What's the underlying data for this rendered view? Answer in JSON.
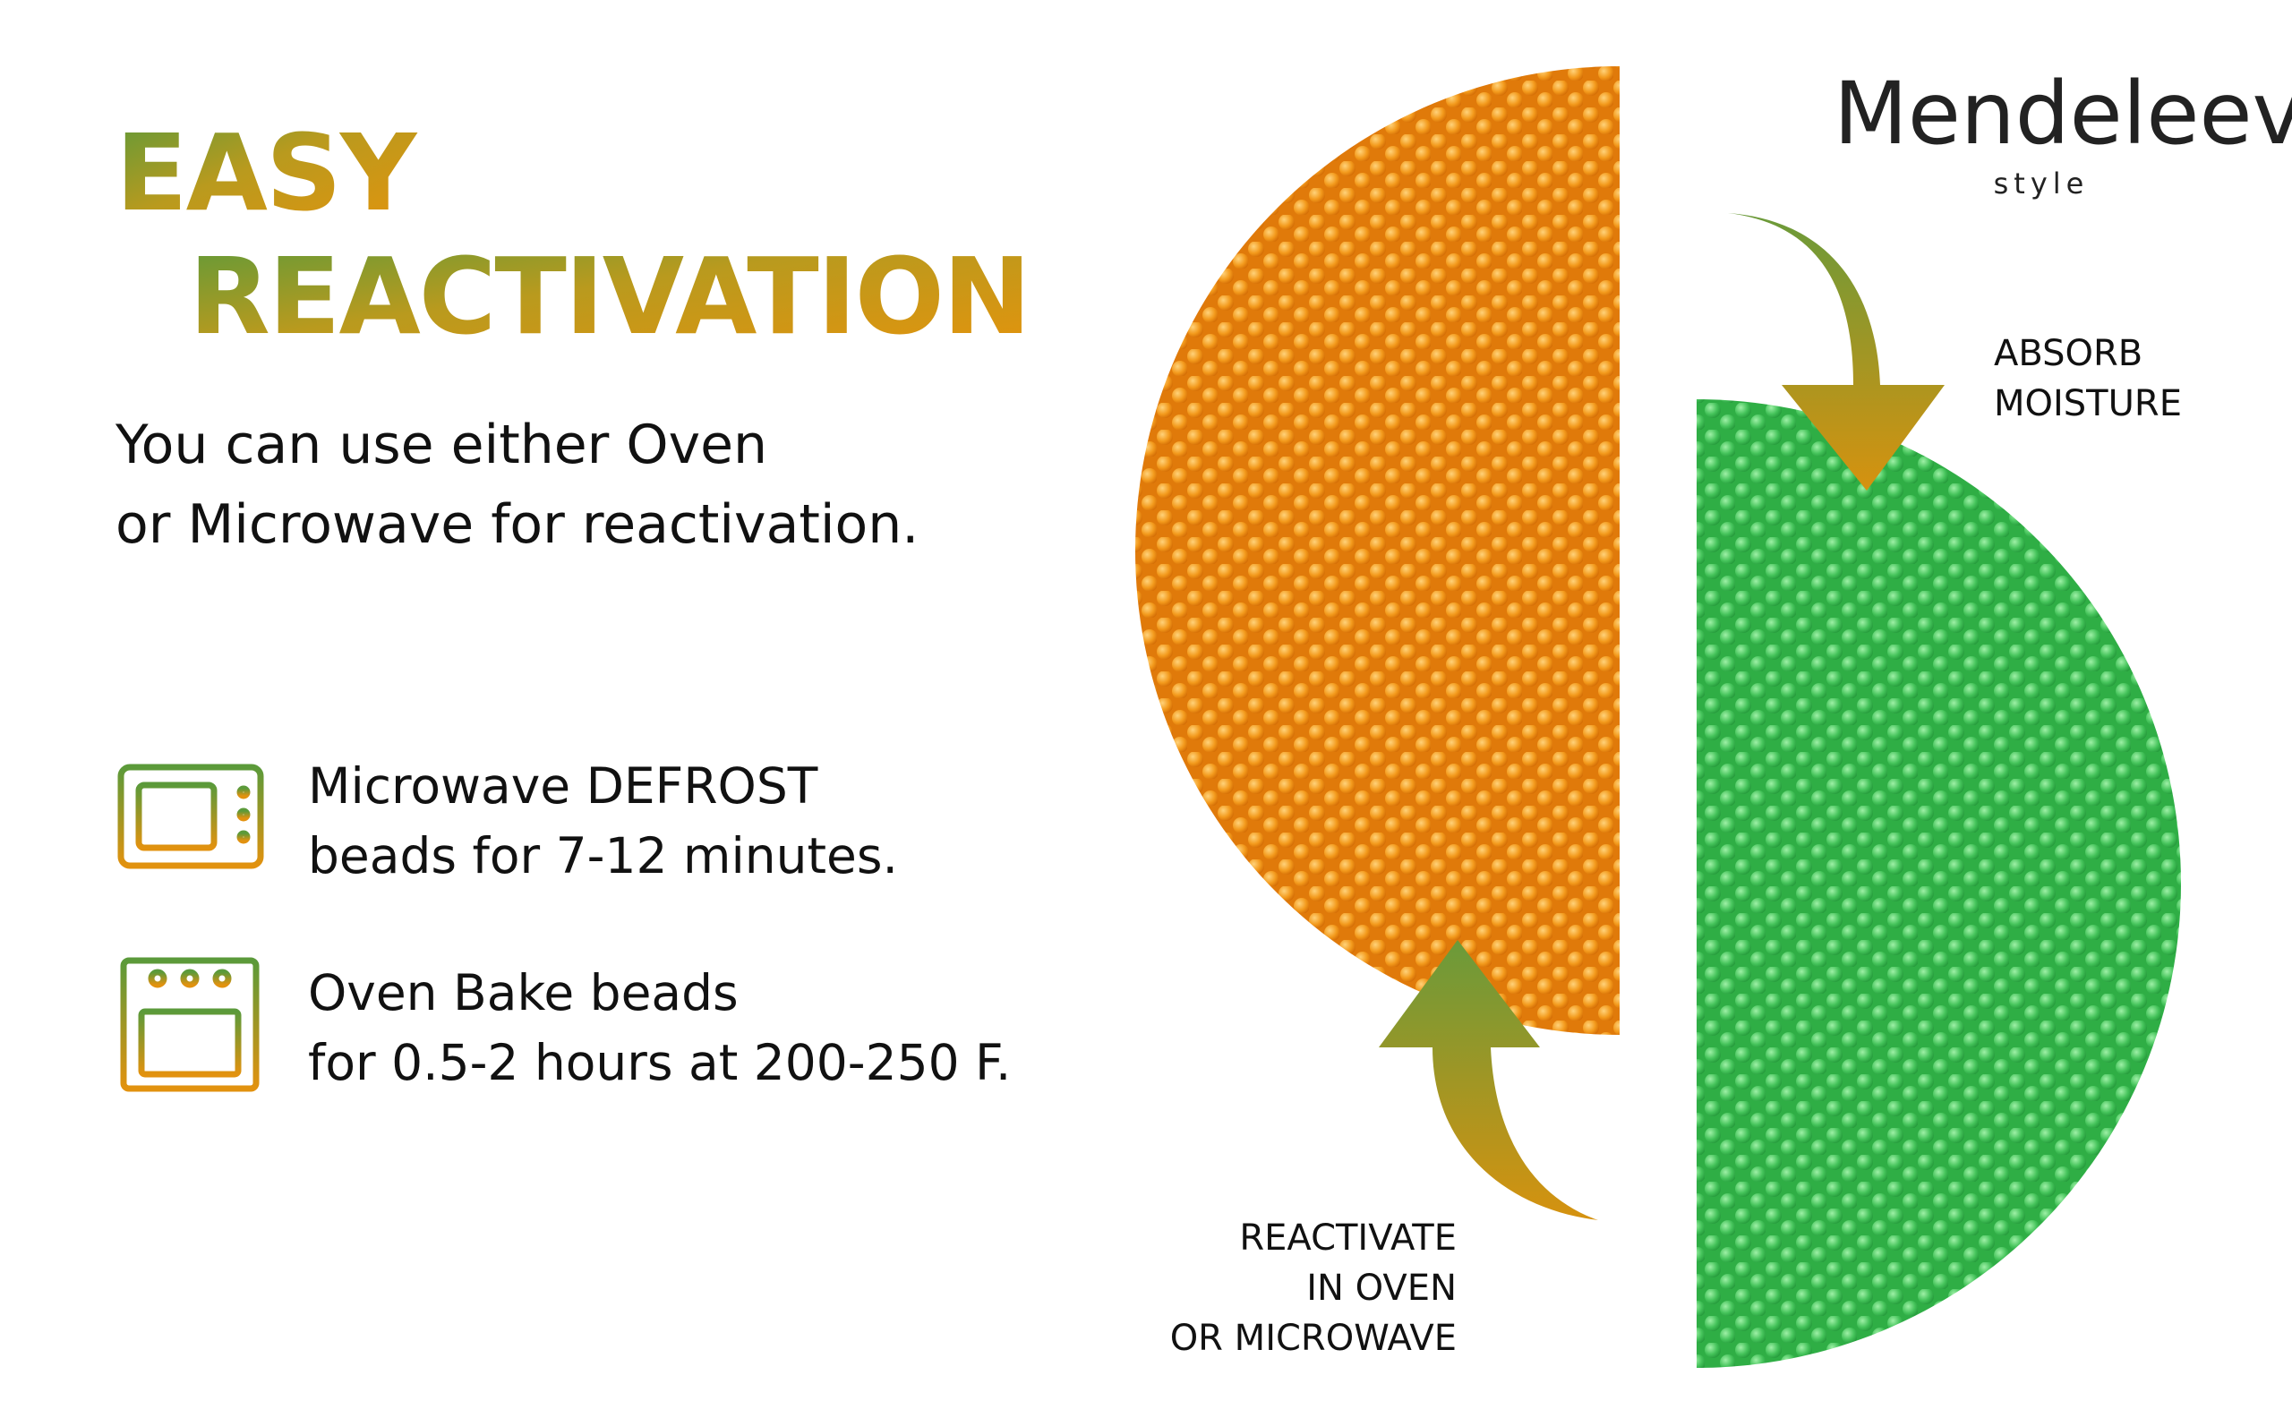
{
  "header": {
    "title": [
      "EASY",
      "REACTIVATION"
    ],
    "subtitle": [
      "You can use either Oven",
      "or Microwave for reactivation."
    ]
  },
  "methods": [
    {
      "icon": "microwave",
      "lines": [
        "Microwave DEFROST",
        "beads for 7-12 minutes."
      ]
    },
    {
      "icon": "oven",
      "lines": [
        "Oven Bake beads",
        "for 0.5-2 hours at 200-250 F."
      ]
    }
  ],
  "brand": {
    "name": "Mendeleev",
    "tagline": "style"
  },
  "labels": {
    "absorb": [
      "ABSORB",
      "MOISTURE"
    ],
    "reactivate": [
      "REACTIVATE",
      "IN OVEN",
      "OR MICROWAVE"
    ]
  }
}
